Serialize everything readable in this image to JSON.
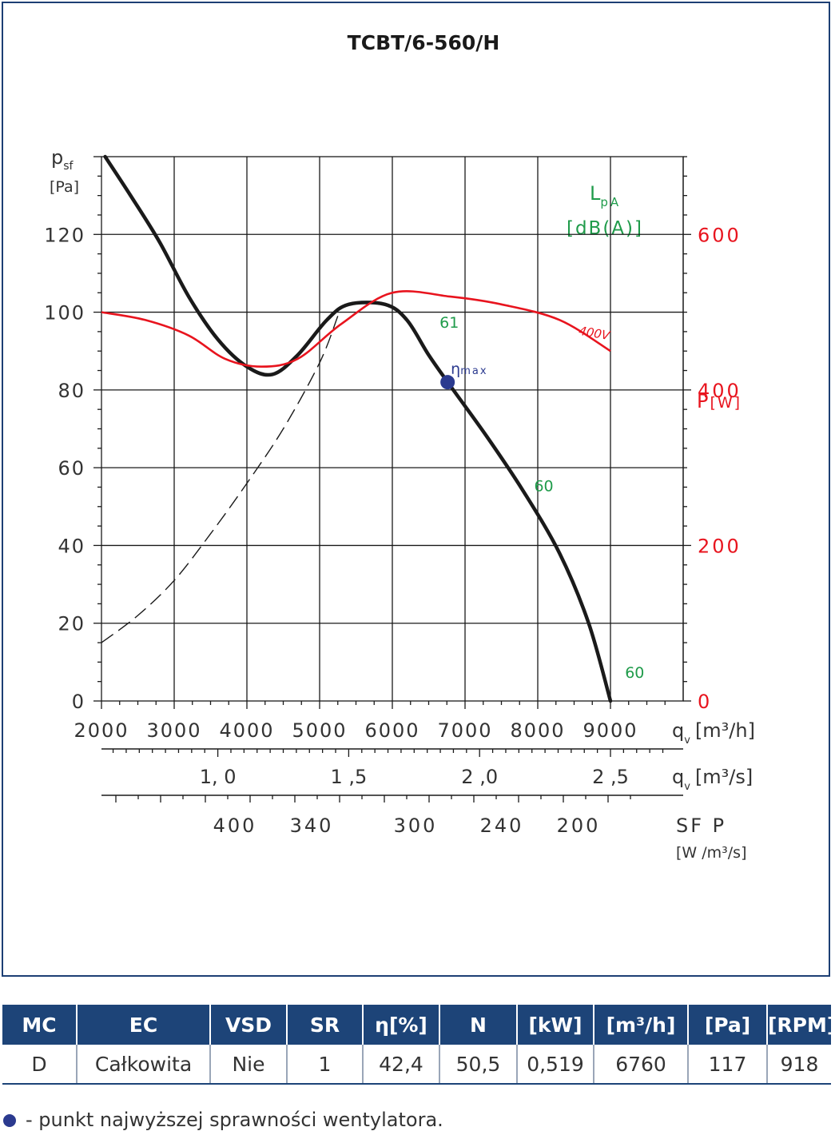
{
  "chart_data": {
    "type": "line",
    "title": "TCBT/6-560/H",
    "ylabel_main": "p",
    "ylabel_sub": "sf",
    "ylabel_unit": "[Pa]",
    "y_ticks": [
      0,
      20,
      40,
      60,
      80,
      100,
      120
    ],
    "ylim": [
      0,
      140
    ],
    "x_ticks": [
      2000,
      3000,
      4000,
      5000,
      6000,
      7000,
      8000,
      9000
    ],
    "xlim": [
      2000,
      10000
    ],
    "xlabel": "q",
    "xlabel_sub": "v",
    "xlabel_unit": "[m³/h]",
    "x2_ticks": [
      {
        "pos": 1.0,
        "label": "1, 0"
      },
      {
        "pos": 1.5,
        "label": "1 ,5"
      },
      {
        "pos": 2.0,
        "label": "2 ,0"
      },
      {
        "pos": 2.5,
        "label": "2 ,5"
      }
    ],
    "x2label": "q",
    "x2label_sub": "v",
    "x2label_unit": "[m³/s]",
    "sfp_ticks": [
      "400",
      "340",
      "300",
      "240",
      "200"
    ],
    "sfp_label": "SF P",
    "sfp_unit": "[W /m³/s]",
    "right_axis_label": "P",
    "right_axis_unit": "[W]",
    "right_ticks": [
      0,
      200,
      400,
      600
    ],
    "right_ylim": [
      0,
      700
    ],
    "lpa_label": "L",
    "lpa_sub": "pA",
    "lpa_unit": "[dB(A)]",
    "series": [
      {
        "name": "",
        "axis": "left",
        "style": "solid",
        "x": [
          2050,
          2400,
          2800,
          3200,
          3600,
          4000,
          4350,
          4700,
          5100,
          5400,
          5900,
          6200,
          6500,
          6800,
          7300,
          7800,
          8300,
          8700,
          9000
        ],
        "y": [
          140,
          130,
          118,
          104,
          93,
          86,
          84,
          89,
          98,
          102,
          102,
          98,
          89,
          81,
          68,
          54,
          38,
          20,
          0
        ]
      },
      {
        "name": "",
        "axis": "left",
        "style": "dashed",
        "x": [
          2000,
          2500,
          3000,
          3500,
          4000,
          4500,
          5000,
          5250
        ],
        "y": [
          15,
          22,
          31,
          43,
          56,
          70,
          87,
          99
        ]
      },
      {
        "name": "400V",
        "axis": "right",
        "style": "solid",
        "x": [
          2000,
          2600,
          3200,
          3700,
          4200,
          4700,
          5300,
          6000,
          6800,
          7500,
          8300,
          9000
        ],
        "y": [
          500,
          490,
          470,
          440,
          430,
          440,
          485,
          525,
          520,
          510,
          490,
          450
        ]
      }
    ],
    "annotations": [
      {
        "label": "61",
        "x": 6650,
        "y": 96
      },
      {
        "label": "60",
        "x": 7950,
        "y": 54
      },
      {
        "label": "60",
        "x": 9200,
        "y": 6
      }
    ],
    "eta_max": {
      "label": "η",
      "label_sub": "max",
      "x": 6760,
      "y": 82
    },
    "colors": {
      "pressure": "#1a1a1a",
      "power": "#e8141e",
      "lpa": "#1f9b4a",
      "eta": "#2b3a8f",
      "grid": "#1a1a1a",
      "frame": "#1d3f74"
    }
  },
  "table": {
    "headers": [
      "MC",
      "EC",
      "VSD",
      "SR",
      "η[%]",
      "N",
      "[kW]",
      "[m³/h]",
      "[Pa]",
      "[RPM]"
    ],
    "row": [
      "D",
      "Całkowita",
      "Nie",
      "1",
      "42,4",
      "50,5",
      "0,519",
      "6760",
      "117",
      "918"
    ]
  },
  "legend_note": "- punkt najwyższej sprawności wentylatora."
}
